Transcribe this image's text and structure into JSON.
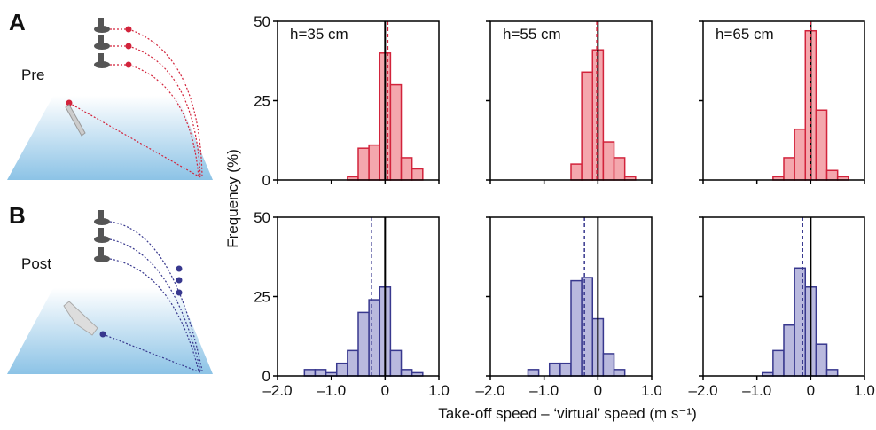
{
  "figure": {
    "panel_labels": [
      "A",
      "B"
    ],
    "row_labels": [
      "Pre",
      "Post"
    ],
    "y_label": "Frequency (%)",
    "x_label": "Take-off speed – ‘virtual’ speed (m s⁻¹)"
  },
  "chart_data": [
    {
      "type": "histogram",
      "title": "h=35 cm",
      "bins": [
        -0.7,
        -0.5,
        -0.3,
        -0.1,
        0.1,
        0.3,
        0.5,
        0.7
      ],
      "values": [
        1,
        10,
        11,
        40,
        30,
        7,
        3.5
      ],
      "color": "#f4a7ad",
      "edge_color": "#d2233b",
      "mean_line": 0.05,
      "reference_line": 0,
      "xlim": [
        -2,
        1
      ],
      "ylim": [
        0,
        50
      ],
      "xticks": [
        -2,
        -1,
        0,
        1
      ],
      "yticks": [
        0,
        25,
        50
      ],
      "show_xtick_labels": false,
      "show_ytick_labels": true
    },
    {
      "type": "histogram",
      "title": "h=55 cm",
      "bins": [
        -0.5,
        -0.3,
        -0.1,
        0.1,
        0.3,
        0.5,
        0.7
      ],
      "values": [
        5,
        34,
        41,
        12,
        7,
        1
      ],
      "color": "#f4a7ad",
      "edge_color": "#d2233b",
      "mean_line": -0.02,
      "reference_line": 0,
      "xlim": [
        -2,
        1
      ],
      "ylim": [
        0,
        50
      ],
      "xticks": [
        -2,
        -1,
        0,
        1
      ],
      "yticks": [
        0,
        25,
        50
      ],
      "show_xtick_labels": false,
      "show_ytick_labels": false
    },
    {
      "type": "histogram",
      "title": "h=65 cm",
      "bins": [
        -0.7,
        -0.5,
        -0.3,
        -0.1,
        0.1,
        0.3,
        0.5,
        0.7
      ],
      "values": [
        1,
        7,
        16,
        47,
        22,
        3,
        1
      ],
      "color": "#f4a7ad",
      "edge_color": "#d2233b",
      "mean_line": 0.0,
      "reference_line": 0,
      "xlim": [
        -2,
        1
      ],
      "ylim": [
        0,
        50
      ],
      "xticks": [
        -2,
        -1,
        0,
        1
      ],
      "yticks": [
        0,
        25,
        50
      ],
      "show_xtick_labels": false,
      "show_ytick_labels": false
    },
    {
      "type": "histogram",
      "bins": [
        -1.5,
        -1.3,
        -1.1,
        -0.9,
        -0.7,
        -0.5,
        -0.3,
        -0.1,
        0.1,
        0.3,
        0.5,
        0.7
      ],
      "values": [
        2,
        2,
        1,
        4,
        8,
        20,
        24,
        28,
        8,
        2,
        1
      ],
      "color": "#b9b9de",
      "edge_color": "#38388e",
      "mean_line": -0.25,
      "reference_line": 0,
      "xlim": [
        -2,
        1
      ],
      "ylim": [
        0,
        50
      ],
      "xticks": [
        {
          "value": -2,
          "label": "–2.0"
        },
        {
          "value": -1,
          "label": "–1.0"
        },
        0,
        {
          "value": 1,
          "label": "1.0"
        }
      ],
      "yticks": [
        0,
        25,
        50
      ],
      "show_xtick_labels": true,
      "show_ytick_labels": true
    },
    {
      "type": "histogram",
      "bins": [
        -1.3,
        -1.1,
        -0.9,
        -0.7,
        -0.5,
        -0.3,
        -0.1,
        0.1,
        0.3,
        0.5
      ],
      "values": [
        2,
        0,
        4,
        4,
        30,
        31,
        18,
        7,
        2
      ],
      "color": "#b9b9de",
      "edge_color": "#38388e",
      "mean_line": -0.25,
      "reference_line": 0,
      "xlim": [
        -2,
        1
      ],
      "ylim": [
        0,
        50
      ],
      "xticks": [
        {
          "value": -2,
          "label": "–2.0"
        },
        {
          "value": -1,
          "label": "–1.0"
        },
        0,
        {
          "value": 1,
          "label": "1.0"
        }
      ],
      "yticks": [
        0,
        25,
        50
      ],
      "show_xtick_labels": true,
      "show_ytick_labels": false
    },
    {
      "type": "histogram",
      "bins": [
        -0.9,
        -0.7,
        -0.5,
        -0.3,
        -0.1,
        0.1,
        0.3,
        0.5
      ],
      "values": [
        1,
        8,
        16,
        34,
        28,
        10,
        2
      ],
      "color": "#b9b9de",
      "edge_color": "#38388e",
      "mean_line": -0.15,
      "reference_line": 0,
      "xlim": [
        -2,
        1
      ],
      "ylim": [
        0,
        50
      ],
      "xticks": [
        {
          "value": -2,
          "label": "–2.0"
        },
        {
          "value": -1,
          "label": "–1.0"
        },
        0,
        {
          "value": 1,
          "label": "1.0"
        }
      ],
      "yticks": [
        0,
        25,
        50
      ],
      "show_xtick_labels": true,
      "show_ytick_labels": false
    }
  ]
}
